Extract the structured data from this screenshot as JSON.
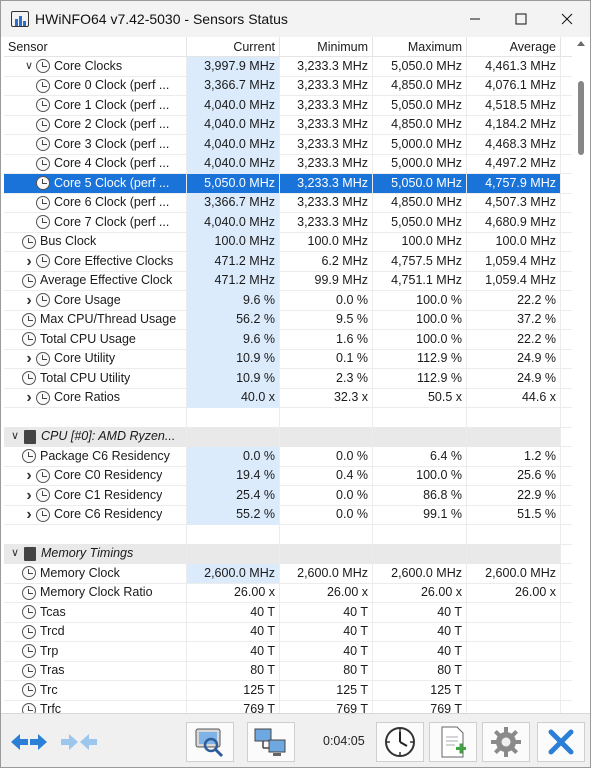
{
  "window": {
    "title": "HWiNFO64 v7.42-5030 - Sensors Status"
  },
  "columns": {
    "sensor": "Sensor",
    "current": "Current",
    "minimum": "Minimum",
    "maximum": "Maximum",
    "average": "Average"
  },
  "rows": [
    {
      "type": "group",
      "expand": "open",
      "indent": 1,
      "icon": "clock-icon",
      "name": "Core Clocks",
      "cur": "3,997.9 MHz",
      "min": "3,233.3 MHz",
      "max": "5,050.0 MHz",
      "avg": "4,461.3 MHz"
    },
    {
      "type": "item",
      "indent": 2,
      "icon": "clock-icon",
      "name": "Core 0 Clock (perf ...",
      "cur": "3,366.7 MHz",
      "min": "3,233.3 MHz",
      "max": "4,850.0 MHz",
      "avg": "4,076.1 MHz"
    },
    {
      "type": "item",
      "indent": 2,
      "icon": "clock-icon",
      "name": "Core 1 Clock (perf ...",
      "cur": "4,040.0 MHz",
      "min": "3,233.3 MHz",
      "max": "5,050.0 MHz",
      "avg": "4,518.5 MHz"
    },
    {
      "type": "item",
      "indent": 2,
      "icon": "clock-icon",
      "name": "Core 2 Clock (perf ...",
      "cur": "4,040.0 MHz",
      "min": "3,233.3 MHz",
      "max": "4,850.0 MHz",
      "avg": "4,184.2 MHz"
    },
    {
      "type": "item",
      "indent": 2,
      "icon": "clock-icon",
      "name": "Core 3 Clock (perf ...",
      "cur": "4,040.0 MHz",
      "min": "3,233.3 MHz",
      "max": "5,000.0 MHz",
      "avg": "4,468.3 MHz"
    },
    {
      "type": "item",
      "indent": 2,
      "icon": "clock-icon",
      "name": "Core 4 Clock (perf ...",
      "cur": "4,040.0 MHz",
      "min": "3,233.3 MHz",
      "max": "5,000.0 MHz",
      "avg": "4,497.2 MHz"
    },
    {
      "type": "item",
      "indent": 2,
      "icon": "clock-icon",
      "name": "Core 5 Clock (perf ...",
      "cur": "5,050.0 MHz",
      "min": "3,233.3 MHz",
      "max": "5,050.0 MHz",
      "avg": "4,757.9 MHz",
      "selected": true
    },
    {
      "type": "item",
      "indent": 2,
      "icon": "clock-icon",
      "name": "Core 6 Clock (perf ...",
      "cur": "3,366.7 MHz",
      "min": "3,233.3 MHz",
      "max": "4,850.0 MHz",
      "avg": "4,507.3 MHz"
    },
    {
      "type": "item",
      "indent": 2,
      "icon": "clock-icon",
      "name": "Core 7 Clock (perf ...",
      "cur": "4,040.0 MHz",
      "min": "3,233.3 MHz",
      "max": "5,050.0 MHz",
      "avg": "4,680.9 MHz"
    },
    {
      "type": "item",
      "indent": 1,
      "icon": "clock-icon",
      "name": "Bus Clock",
      "cur": "100.0 MHz",
      "min": "100.0 MHz",
      "max": "100.0 MHz",
      "avg": "100.0 MHz"
    },
    {
      "type": "group",
      "expand": "closed",
      "indent": 1,
      "icon": "clock-icon",
      "name": "Core Effective Clocks",
      "cur": "471.2 MHz",
      "min": "6.2 MHz",
      "max": "4,757.5 MHz",
      "avg": "1,059.4 MHz"
    },
    {
      "type": "item",
      "indent": 1,
      "icon": "clock-icon",
      "name": "Average Effective Clock",
      "cur": "471.2 MHz",
      "min": "99.9 MHz",
      "max": "4,751.1 MHz",
      "avg": "1,059.4 MHz"
    },
    {
      "type": "group",
      "expand": "closed",
      "indent": 1,
      "icon": "clock-icon",
      "name": "Core Usage",
      "cur": "9.6 %",
      "min": "0.0 %",
      "max": "100.0 %",
      "avg": "22.2 %"
    },
    {
      "type": "item",
      "indent": 1,
      "icon": "clock-icon",
      "name": "Max CPU/Thread Usage",
      "cur": "56.2 %",
      "min": "9.5 %",
      "max": "100.0 %",
      "avg": "37.2 %"
    },
    {
      "type": "item",
      "indent": 1,
      "icon": "clock-icon",
      "name": "Total CPU Usage",
      "cur": "9.6 %",
      "min": "1.6 %",
      "max": "100.0 %",
      "avg": "22.2 %"
    },
    {
      "type": "group",
      "expand": "closed",
      "indent": 1,
      "icon": "clock-icon",
      "name": "Core Utility",
      "cur": "10.9 %",
      "min": "0.1 %",
      "max": "112.9 %",
      "avg": "24.9 %"
    },
    {
      "type": "item",
      "indent": 1,
      "icon": "clock-icon",
      "name": "Total CPU Utility",
      "cur": "10.9 %",
      "min": "2.3 %",
      "max": "112.9 %",
      "avg": "24.9 %"
    },
    {
      "type": "group",
      "expand": "closed",
      "indent": 1,
      "icon": "clock-icon",
      "name": "Core Ratios",
      "cur": "40.0 x",
      "min": "32.3 x",
      "max": "50.5 x",
      "avg": "44.6 x"
    },
    {
      "type": "blank"
    },
    {
      "type": "section",
      "expand": "open",
      "icon": "chip-icon",
      "name": "CPU [#0]: AMD Ryzen..."
    },
    {
      "type": "item",
      "indent": 1,
      "icon": "clock-icon",
      "name": "Package C6 Residency",
      "cur": "0.0 %",
      "min": "0.0 %",
      "max": "6.4 %",
      "avg": "1.2 %"
    },
    {
      "type": "group",
      "expand": "closed",
      "indent": 1,
      "icon": "clock-icon",
      "name": "Core C0 Residency",
      "cur": "19.4 %",
      "min": "0.4 %",
      "max": "100.0 %",
      "avg": "25.6 %"
    },
    {
      "type": "group",
      "expand": "closed",
      "indent": 1,
      "icon": "clock-icon",
      "name": "Core C1 Residency",
      "cur": "25.4 %",
      "min": "0.0 %",
      "max": "86.8 %",
      "avg": "22.9 %"
    },
    {
      "type": "group",
      "expand": "closed",
      "indent": 1,
      "icon": "clock-icon",
      "name": "Core C6 Residency",
      "cur": "55.2 %",
      "min": "0.0 %",
      "max": "99.1 %",
      "avg": "51.5 %"
    },
    {
      "type": "blank"
    },
    {
      "type": "section",
      "expand": "open",
      "icon": "chip-icon",
      "name": "Memory Timings"
    },
    {
      "type": "item",
      "indent": 1,
      "icon": "clock-icon",
      "name": "Memory Clock",
      "cur": "2,600.0 MHz",
      "min": "2,600.0 MHz",
      "max": "2,600.0 MHz",
      "avg": "2,600.0 MHz"
    },
    {
      "type": "item",
      "indent": 1,
      "icon": "clock-icon",
      "name": "Memory Clock Ratio",
      "cur": "26.00 x",
      "min": "26.00 x",
      "max": "26.00 x",
      "avg": "26.00 x",
      "plain": true
    },
    {
      "type": "item",
      "indent": 1,
      "icon": "clock-icon",
      "name": "Tcas",
      "cur": "40 T",
      "min": "40 T",
      "max": "40 T",
      "avg": "",
      "plain": true
    },
    {
      "type": "item",
      "indent": 1,
      "icon": "clock-icon",
      "name": "Trcd",
      "cur": "40 T",
      "min": "40 T",
      "max": "40 T",
      "avg": "",
      "plain": true
    },
    {
      "type": "item",
      "indent": 1,
      "icon": "clock-icon",
      "name": "Trp",
      "cur": "40 T",
      "min": "40 T",
      "max": "40 T",
      "avg": "",
      "plain": true
    },
    {
      "type": "item",
      "indent": 1,
      "icon": "clock-icon",
      "name": "Tras",
      "cur": "80 T",
      "min": "80 T",
      "max": "80 T",
      "avg": "",
      "plain": true
    },
    {
      "type": "item",
      "indent": 1,
      "icon": "clock-icon",
      "name": "Trc",
      "cur": "125 T",
      "min": "125 T",
      "max": "125 T",
      "avg": "",
      "plain": true
    },
    {
      "type": "item",
      "indent": 1,
      "icon": "clock-icon",
      "name": "Trfc",
      "cur": "769 T",
      "min": "769 T",
      "max": "769 T",
      "avg": "",
      "plain": true
    }
  ],
  "toolbar": {
    "timer": "0:04:05"
  },
  "colors": {
    "selection": "#1a73d9",
    "current_column": "#dcebfb",
    "accent": "#2a6fd0"
  }
}
